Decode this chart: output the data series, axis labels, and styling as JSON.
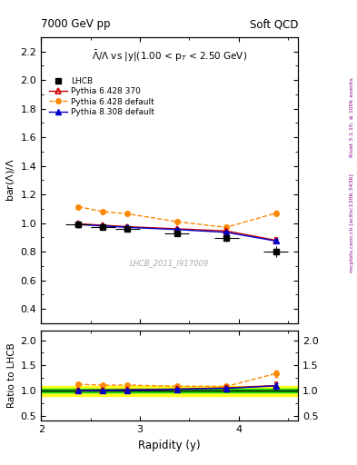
{
  "title_left": "7000 GeV pp",
  "title_right": "Soft QCD",
  "panel_title": "$\\bar{\\Lambda}/\\Lambda$ vs |y|(1.00 < p$_T$ < 2.50 GeV)",
  "xlabel": "Rapidity (y)",
  "ylabel_main": "bar(\\u039b)/\\u039b",
  "ylabel_ratio": "Ratio to LHCB",
  "right_label_top": "Rivet 3.1.10, ≥ 100k events",
  "right_label_bottom": "mcplots.cern.ch [arXiv:1306.3436]",
  "watermark": "LHCB_2011_I917009",
  "xlim": [
    2.0,
    4.6
  ],
  "ylim_main": [
    0.3,
    2.3
  ],
  "ylim_ratio": [
    0.4,
    2.2
  ],
  "lhcb_x": [
    2.375,
    2.625,
    2.875,
    3.375,
    3.875,
    4.375
  ],
  "lhcb_y": [
    0.99,
    0.975,
    0.96,
    0.93,
    0.895,
    0.8
  ],
  "lhcb_yerr": [
    0.025,
    0.02,
    0.02,
    0.02,
    0.025,
    0.04
  ],
  "lhcb_xerr": [
    0.125,
    0.125,
    0.125,
    0.125,
    0.125,
    0.125
  ],
  "p6_370_x": [
    2.375,
    2.625,
    2.875,
    3.375,
    3.875,
    4.375
  ],
  "p6_370_y": [
    0.995,
    0.985,
    0.975,
    0.96,
    0.945,
    0.88
  ],
  "p6_370_yerr": [
    0.008,
    0.008,
    0.008,
    0.008,
    0.01,
    0.015
  ],
  "p6_default_x": [
    2.375,
    2.625,
    2.875,
    3.375,
    3.875,
    4.375
  ],
  "p6_default_y": [
    1.115,
    1.08,
    1.065,
    1.01,
    0.97,
    1.07
  ],
  "p6_default_yerr": [
    0.01,
    0.01,
    0.01,
    0.01,
    0.01,
    0.015
  ],
  "p8_default_x": [
    2.375,
    2.625,
    2.875,
    3.375,
    3.875,
    4.375
  ],
  "p8_default_y": [
    0.99,
    0.98,
    0.97,
    0.955,
    0.935,
    0.875
  ],
  "p8_default_yerr": [
    0.008,
    0.008,
    0.008,
    0.008,
    0.01,
    0.012
  ],
  "col_lhcb": "#000000",
  "col_p6_370": "#cc0000",
  "col_p6_def": "#ff8800",
  "col_p8_def": "#0000cc",
  "band_green": 0.04,
  "band_yellow": 0.1,
  "yticks_main": [
    0.4,
    0.6,
    0.8,
    1.0,
    1.2,
    1.4,
    1.6,
    1.8,
    2.0,
    2.2
  ],
  "yticks_ratio": [
    0.5,
    1.0,
    1.5,
    2.0
  ],
  "xticks": [
    2,
    3,
    4
  ]
}
